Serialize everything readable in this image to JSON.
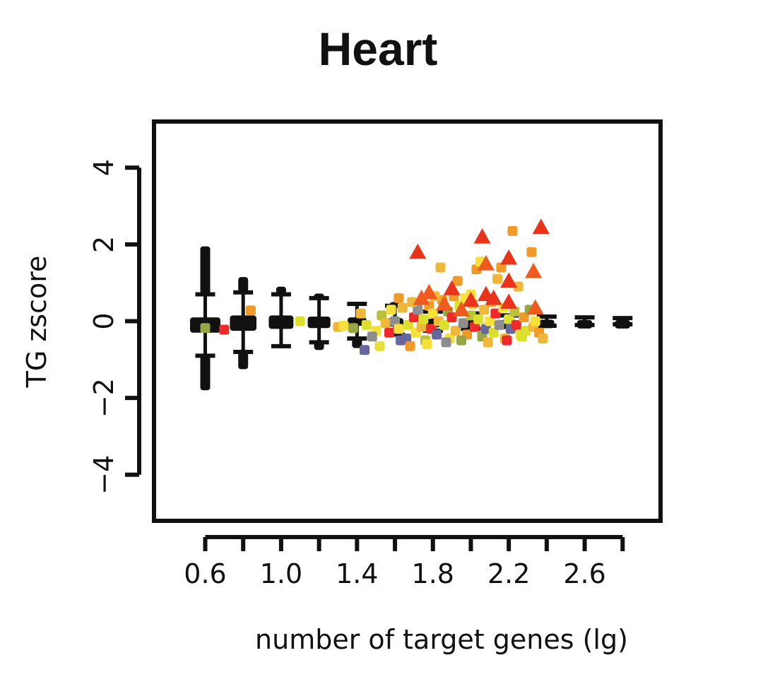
{
  "chart_data": {
    "type": "scatter",
    "title": "Heart",
    "xlabel": "number of target genes (lg)",
    "ylabel": "TG zscore",
    "xlim": [
      0.33,
      3.0
    ],
    "ylim": [
      -5.2,
      5.2
    ],
    "xticks": [
      0.6,
      0.8,
      1.0,
      1.2,
      1.4,
      1.6,
      1.8,
      2.0,
      2.2,
      2.4,
      2.6,
      2.8
    ],
    "xtick_labels": [
      "0.6",
      "1.0",
      "1.4",
      "1.8",
      "2.2",
      "2.6"
    ],
    "xtick_label_values": [
      0.6,
      1.0,
      1.4,
      1.8,
      2.2,
      2.6
    ],
    "yticks": [
      -4,
      -2,
      0,
      2,
      4
    ],
    "ytick_labels": [
      "−4",
      "−2",
      "0",
      "2",
      "4"
    ],
    "grid": false,
    "legend": "none",
    "boxplots": [
      {
        "x": 0.6,
        "q1": -0.3,
        "q3": 0.1,
        "lo": -0.9,
        "hi": 0.7,
        "outliers_lo": -1.8,
        "outliers_hi": 1.95,
        "width": 0.16
      },
      {
        "x": 0.8,
        "q1": -0.25,
        "q3": 0.15,
        "lo": -0.8,
        "hi": 0.75,
        "outliers_lo": -1.25,
        "outliers_hi": 1.15,
        "width": 0.14
      },
      {
        "x": 1.0,
        "q1": -0.2,
        "q3": 0.15,
        "lo": -0.65,
        "hi": 0.7,
        "outliers_lo": -0.65,
        "outliers_hi": 0.9,
        "width": 0.13
      },
      {
        "x": 1.2,
        "q1": -0.18,
        "q3": 0.12,
        "lo": -0.55,
        "hi": 0.6,
        "outliers_lo": -0.75,
        "outliers_hi": 0.72,
        "width": 0.12
      },
      {
        "x": 1.4,
        "q1": -0.12,
        "q3": 0.1,
        "lo": -0.45,
        "hi": 0.45,
        "outliers_lo": -0.7,
        "outliers_hi": 0.45,
        "width": 0.1
      },
      {
        "x": 1.6,
        "q1": -0.1,
        "q3": 0.08,
        "lo": -0.35,
        "hi": 0.4,
        "outliers_lo": -0.4,
        "outliers_hi": 0.5,
        "width": 0.09
      },
      {
        "x": 1.8,
        "q1": -0.08,
        "q3": 0.06,
        "lo": -0.25,
        "hi": 0.25,
        "outliers_lo": -0.3,
        "outliers_hi": 0.3,
        "width": 0.08
      },
      {
        "x": 2.0,
        "q1": -0.06,
        "q3": 0.05,
        "lo": -0.2,
        "hi": 0.2,
        "outliers_lo": -0.2,
        "outliers_hi": 0.2,
        "width": 0.08
      },
      {
        "x": 2.2,
        "q1": -0.05,
        "q3": 0.04,
        "lo": -0.15,
        "hi": 0.15,
        "outliers_lo": -0.15,
        "outliers_hi": 0.15,
        "width": 0.08
      },
      {
        "x": 2.4,
        "q1": -0.05,
        "q3": 0.04,
        "lo": -0.12,
        "hi": 0.12,
        "outliers_lo": -0.12,
        "outliers_hi": 0.12,
        "width": 0.08
      },
      {
        "x": 2.6,
        "q1": -0.04,
        "q3": 0.03,
        "lo": -0.1,
        "hi": 0.1,
        "outliers_lo": -0.1,
        "outliers_hi": 0.1,
        "width": 0.08
      },
      {
        "x": 2.8,
        "q1": -0.03,
        "q3": 0.03,
        "lo": -0.08,
        "hi": 0.08,
        "outliers_lo": -0.08,
        "outliers_hi": 0.08,
        "width": 0.08
      }
    ],
    "triangles": [
      {
        "x": 1.72,
        "y": 1.8,
        "color": "#e8341c"
      },
      {
        "x": 2.06,
        "y": 2.2,
        "color": "#e8341c"
      },
      {
        "x": 2.37,
        "y": 2.45,
        "color": "#e8341c"
      },
      {
        "x": 2.2,
        "y": 1.65,
        "color": "#e8341c"
      },
      {
        "x": 2.08,
        "y": 1.5,
        "color": "#ef5a1f"
      },
      {
        "x": 2.33,
        "y": 1.3,
        "color": "#ef5a1f"
      },
      {
        "x": 2.2,
        "y": 1.05,
        "color": "#e8341c"
      },
      {
        "x": 1.9,
        "y": 0.85,
        "color": "#e8341c"
      },
      {
        "x": 1.78,
        "y": 0.75,
        "color": "#ef5a1f"
      },
      {
        "x": 2.08,
        "y": 0.7,
        "color": "#e8341c"
      },
      {
        "x": 2.0,
        "y": 0.55,
        "color": "#e8341c"
      },
      {
        "x": 2.2,
        "y": 0.5,
        "color": "#e8341c"
      },
      {
        "x": 1.74,
        "y": 0.6,
        "color": "#ef5a1f"
      },
      {
        "x": 2.34,
        "y": 0.35,
        "color": "#ef5a1f"
      },
      {
        "x": 1.86,
        "y": 0.45,
        "color": "#ef5a1f"
      },
      {
        "x": 2.12,
        "y": 0.6,
        "color": "#e8341c"
      },
      {
        "x": 1.95,
        "y": 0.3,
        "color": "#ef5a1f"
      }
    ],
    "squares": [
      {
        "x": 0.6,
        "y": -0.18,
        "color": "#97a545"
      },
      {
        "x": 0.7,
        "y": -0.22,
        "color": "#ee2a2a"
      },
      {
        "x": 0.84,
        "y": 0.28,
        "color": "#f09a2a"
      },
      {
        "x": 1.1,
        "y": 0.0,
        "color": "#dbe02c"
      },
      {
        "x": 1.3,
        "y": -0.15,
        "color": "#f0b83a"
      },
      {
        "x": 1.33,
        "y": -0.12,
        "color": "#f7e03a"
      },
      {
        "x": 1.38,
        "y": -0.18,
        "color": "#97a545"
      },
      {
        "x": 1.42,
        "y": 0.2,
        "color": "#f0b83a"
      },
      {
        "x": 1.44,
        "y": -0.75,
        "color": "#66679e"
      },
      {
        "x": 1.45,
        "y": -0.1,
        "color": "#dbe02c"
      },
      {
        "x": 1.5,
        "y": -0.25,
        "color": "#f7e03a"
      },
      {
        "x": 1.52,
        "y": -0.65,
        "color": "#e8df3a"
      },
      {
        "x": 1.53,
        "y": 0.15,
        "color": "#b9c23a"
      },
      {
        "x": 1.55,
        "y": -0.05,
        "color": "#f0b83a"
      },
      {
        "x": 1.57,
        "y": -0.3,
        "color": "#ee2a2a"
      },
      {
        "x": 1.6,
        "y": 0.0,
        "color": "#8e8e8e"
      },
      {
        "x": 1.62,
        "y": 0.6,
        "color": "#f09a2a"
      },
      {
        "x": 1.62,
        "y": -0.2,
        "color": "#f7e03a"
      },
      {
        "x": 1.64,
        "y": 0.35,
        "color": "#f0b83a"
      },
      {
        "x": 1.66,
        "y": -0.45,
        "color": "#66679e"
      },
      {
        "x": 1.67,
        "y": -0.1,
        "color": "#dbe02c"
      },
      {
        "x": 1.68,
        "y": -0.65,
        "color": "#f09a2a"
      },
      {
        "x": 1.7,
        "y": 0.1,
        "color": "#ee2a2a"
      },
      {
        "x": 1.71,
        "y": -0.3,
        "color": "#f7e03a"
      },
      {
        "x": 1.72,
        "y": 0.3,
        "color": "#8e8e8e"
      },
      {
        "x": 1.74,
        "y": -0.15,
        "color": "#f0b83a"
      },
      {
        "x": 1.75,
        "y": 0.05,
        "color": "#dbe02c"
      },
      {
        "x": 1.76,
        "y": -0.5,
        "color": "#b9c23a"
      },
      {
        "x": 1.78,
        "y": 0.4,
        "color": "#f09a2a"
      },
      {
        "x": 1.79,
        "y": -0.2,
        "color": "#ee2a2a"
      },
      {
        "x": 1.8,
        "y": 0.2,
        "color": "#f7e03a"
      },
      {
        "x": 1.82,
        "y": -0.35,
        "color": "#66679e"
      },
      {
        "x": 1.83,
        "y": 0.0,
        "color": "#f0b83a"
      },
      {
        "x": 1.84,
        "y": 1.4,
        "color": "#f0b83a"
      },
      {
        "x": 1.85,
        "y": 0.55,
        "color": "#f09a2a"
      },
      {
        "x": 1.86,
        "y": -0.1,
        "color": "#dbe02c"
      },
      {
        "x": 1.88,
        "y": 0.25,
        "color": "#97a545"
      },
      {
        "x": 1.89,
        "y": -0.45,
        "color": "#f7e03a"
      },
      {
        "x": 1.9,
        "y": 0.1,
        "color": "#ee2a2a"
      },
      {
        "x": 1.92,
        "y": -0.25,
        "color": "#f0b83a"
      },
      {
        "x": 1.93,
        "y": 1.05,
        "color": "#f09a2a"
      },
      {
        "x": 1.94,
        "y": 0.4,
        "color": "#dbe02c"
      },
      {
        "x": 1.96,
        "y": -0.05,
        "color": "#8e8e8e"
      },
      {
        "x": 1.97,
        "y": 0.6,
        "color": "#f7e03a"
      },
      {
        "x": 1.98,
        "y": -0.35,
        "color": "#f09a2a"
      },
      {
        "x": 2.0,
        "y": 0.15,
        "color": "#b9c23a"
      },
      {
        "x": 2.01,
        "y": 0.45,
        "color": "#f0b83a"
      },
      {
        "x": 2.02,
        "y": -0.15,
        "color": "#ee2a2a"
      },
      {
        "x": 2.03,
        "y": 1.35,
        "color": "#f09a2a"
      },
      {
        "x": 2.04,
        "y": 0.05,
        "color": "#dbe02c"
      },
      {
        "x": 2.05,
        "y": 1.55,
        "color": "#f7e03a"
      },
      {
        "x": 2.06,
        "y": -0.4,
        "color": "#97a545"
      },
      {
        "x": 2.07,
        "y": 0.3,
        "color": "#f0b83a"
      },
      {
        "x": 2.08,
        "y": -0.2,
        "color": "#66679e"
      },
      {
        "x": 2.1,
        "y": 0.0,
        "color": "#f7e03a"
      },
      {
        "x": 2.11,
        "y": 0.5,
        "color": "#f09a2a"
      },
      {
        "x": 2.12,
        "y": -0.3,
        "color": "#dbe02c"
      },
      {
        "x": 2.13,
        "y": 0.2,
        "color": "#ee2a2a"
      },
      {
        "x": 2.14,
        "y": 1.1,
        "color": "#f0b83a"
      },
      {
        "x": 2.15,
        "y": -0.1,
        "color": "#8e8e8e"
      },
      {
        "x": 2.16,
        "y": 1.4,
        "color": "#f09a2a"
      },
      {
        "x": 2.17,
        "y": 0.35,
        "color": "#f7e03a"
      },
      {
        "x": 2.18,
        "y": -0.45,
        "color": "#f0b83a"
      },
      {
        "x": 2.2,
        "y": 0.05,
        "color": "#dbe02c"
      },
      {
        "x": 2.21,
        "y": -0.2,
        "color": "#66679e"
      },
      {
        "x": 2.22,
        "y": 2.35,
        "color": "#f09a2a"
      },
      {
        "x": 2.23,
        "y": 0.25,
        "color": "#b9c23a"
      },
      {
        "x": 2.24,
        "y": -0.1,
        "color": "#ee2a2a"
      },
      {
        "x": 2.25,
        "y": 0.9,
        "color": "#f0b83a"
      },
      {
        "x": 2.26,
        "y": -0.35,
        "color": "#f7e03a"
      },
      {
        "x": 2.28,
        "y": 0.1,
        "color": "#f09a2a"
      },
      {
        "x": 2.29,
        "y": -0.25,
        "color": "#dbe02c"
      },
      {
        "x": 2.31,
        "y": 0.3,
        "color": "#97a545"
      },
      {
        "x": 2.32,
        "y": 1.8,
        "color": "#f09a2a"
      },
      {
        "x": 2.33,
        "y": -0.15,
        "color": "#f0b83a"
      },
      {
        "x": 2.34,
        "y": 0.0,
        "color": "#f7e03a"
      },
      {
        "x": 2.36,
        "y": -0.3,
        "color": "#f09a2a"
      },
      {
        "x": 2.38,
        "y": -0.45,
        "color": "#f0b83a"
      },
      {
        "x": 1.58,
        "y": 0.3,
        "color": "#f7e03a"
      },
      {
        "x": 1.69,
        "y": 0.5,
        "color": "#f0b83a"
      },
      {
        "x": 1.77,
        "y": -0.6,
        "color": "#f7e03a"
      },
      {
        "x": 1.87,
        "y": -0.55,
        "color": "#8e8e8e"
      },
      {
        "x": 1.95,
        "y": -0.5,
        "color": "#97a545"
      },
      {
        "x": 2.09,
        "y": -0.55,
        "color": "#f0b83a"
      },
      {
        "x": 2.19,
        "y": -0.5,
        "color": "#ee2a2a"
      },
      {
        "x": 2.27,
        "y": -0.4,
        "color": "#dbe02c"
      },
      {
        "x": 1.48,
        "y": -0.4,
        "color": "#8e8e8e"
      },
      {
        "x": 1.63,
        "y": -0.5,
        "color": "#66679e"
      },
      {
        "x": 1.91,
        "y": 0.65,
        "color": "#f09a2a"
      },
      {
        "x": 2.0,
        "y": 0.7,
        "color": "#f7e03a"
      },
      {
        "x": 1.81,
        "y": 0.65,
        "color": "#f0b83a"
      }
    ]
  }
}
